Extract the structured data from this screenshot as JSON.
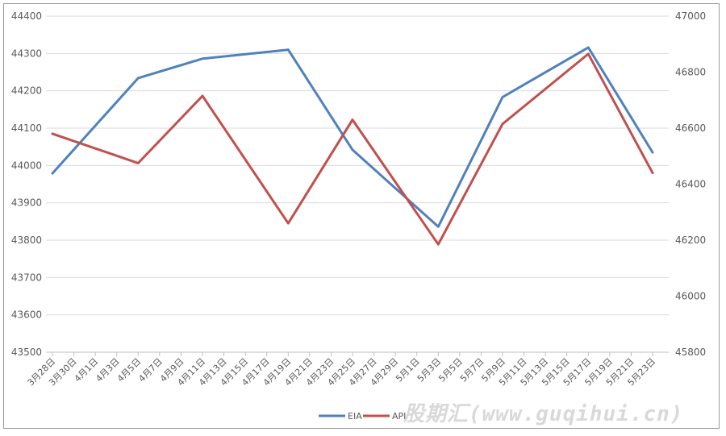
{
  "chart_data": {
    "type": "line",
    "x_categories": [
      "3月28日",
      "3月30日",
      "4月1日",
      "4月3日",
      "4月5日",
      "4月7日",
      "4月9日",
      "4月11日",
      "4月13日",
      "4月15日",
      "4月17日",
      "4月19日",
      "4月21日",
      "4月23日",
      "4月25日",
      "4月27日",
      "4月29日",
      "5月1日",
      "5月3日",
      "5月5日",
      "5月7日",
      "5月9日",
      "5月11日",
      "5月13日",
      "5月15日",
      "5月17日",
      "5月19日",
      "5月21日",
      "5月23日"
    ],
    "left_axis": {
      "min": 43500,
      "max": 44400,
      "ticks": [
        "43500",
        "43600",
        "43700",
        "43800",
        "43900",
        "44000",
        "44100",
        "44200",
        "44300",
        "44400"
      ]
    },
    "right_axis": {
      "min": 45800,
      "max": 47000,
      "ticks": [
        "45800",
        "46000",
        "46200",
        "46400",
        "46600",
        "46800",
        "47000"
      ]
    },
    "series": [
      {
        "name": "EIA",
        "axis": "left",
        "color": "#4f81bd",
        "points": [
          {
            "x": "3月28日",
            "y": 43979
          },
          {
            "x": "4月5日",
            "y": 44234
          },
          {
            "x": "4月11日",
            "y": 44286
          },
          {
            "x": "4月19日",
            "y": 44310
          },
          {
            "x": "4月25日",
            "y": 44042
          },
          {
            "x": "5月3日",
            "y": 43836
          },
          {
            "x": "5月9日",
            "y": 44183
          },
          {
            "x": "5月17日",
            "y": 44316
          },
          {
            "x": "5月23日",
            "y": 44035
          }
        ]
      },
      {
        "name": "API",
        "axis": "right",
        "color": "#c0504d",
        "points": [
          {
            "x": "3月28日",
            "y": 46580
          },
          {
            "x": "4月5日",
            "y": 46475
          },
          {
            "x": "4月11日",
            "y": 46715
          },
          {
            "x": "4月19日",
            "y": 46260
          },
          {
            "x": "4月25日",
            "y": 46630
          },
          {
            "x": "5月3日",
            "y": 46185
          },
          {
            "x": "5月9日",
            "y": 46615
          },
          {
            "x": "5月17日",
            "y": 46865
          },
          {
            "x": "5月23日",
            "y": 46440
          }
        ]
      }
    ],
    "grid": true,
    "legend": "bottom-right"
  },
  "watermark": "股期汇(www.guqihui.cn)"
}
